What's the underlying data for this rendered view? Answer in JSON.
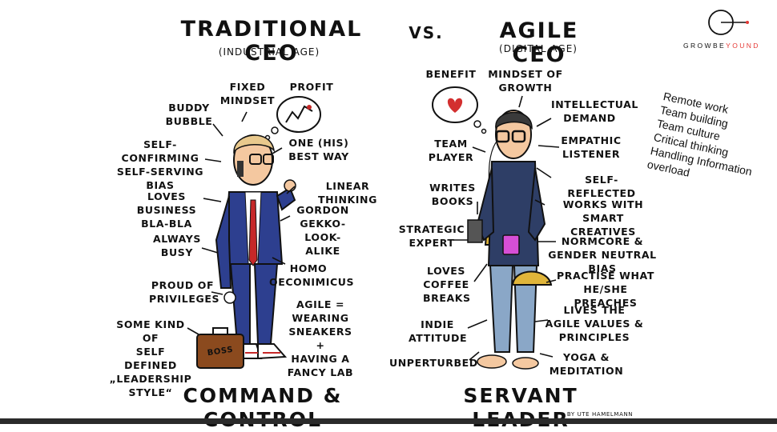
{
  "header": {
    "left_title": "TRADITiONAL CEO",
    "left_subtitle": "(iNDUSTRiAL AGE)",
    "vs": "VS.",
    "right_title": "AGiLE CEO",
    "right_subtitle": "(DiGiTAL AGE)"
  },
  "logo": {
    "part1": "GROWBE",
    "part2": "YOUND"
  },
  "traditional": {
    "labels": [
      "BUDDY\nBUBBLE",
      "FiXED\nMiNDSET",
      "PROFiT",
      "SELF-CONFiRMiNG\nSELF-SERViNG\nBiAS",
      "ONE (HiS)\nBEST WAY",
      "LiNEAR THiNKiNG",
      "LOVES BUSiNESS\nBLA-BLA",
      "GORDON\nGEKKO-\nLOOK-ALiKE",
      "ALWAYS\nBUSY",
      "HOMO\nOECONiMiCUS",
      "PROUD OF\nPRiViLEGES",
      "AGiLE =\nWEARiNG\nSNEAKERS +\nHAViNG A\nFANCY LAB",
      "SOME KiND OF\nSELF DEFiNED\n„LEADERSHiP\nSTYLE“"
    ],
    "briefcase": "BOSS",
    "footer": "COMMAND & CONTROL"
  },
  "agile": {
    "labels": [
      "BENEFiT",
      "MiNDSET OF\nGROWTH",
      "iNTELLECTUAL\nDEMAND",
      "TEAM\nPLAYER",
      "EMPATHiC\nLiSTENER",
      "SELF-REFLECTED",
      "WRiTES\nBOOKS",
      "WORKS WiTH SMART\nCREATiVES",
      "STRATEGiC\nEXPERT",
      "NORMCORE &\nGENDER NEUTRAL BiAS",
      "LOVES\nCOFFEE\nBREAKS",
      "PRACTiSE WHAT\nHE/SHE PREACHES",
      "iNDiE\nATTiTUDE",
      "LiVES THE\nAGiLE VALUES &\nPRiNCiPLES",
      "UNPERTURBED",
      "YOGA &\nMEDiTATiON"
    ],
    "footer": "SERVANT LEADER"
  },
  "notes": [
    "Remote work",
    "Team building",
    "Team culture",
    "Critical thinking",
    "Handling Information",
    "overload"
  ],
  "credit": "BY UTE HAMELMANN",
  "colors": {
    "tie": "#c62828",
    "suit": "#2d3f8f",
    "heart": "#d32f2f",
    "mug": "#d64fd6",
    "backpack": "#e0b53a",
    "skin": "#f4c8a0",
    "jeans": "#8aa7c7",
    "briefcase": "#8b4a1e",
    "logo_accent": "#e53935"
  }
}
